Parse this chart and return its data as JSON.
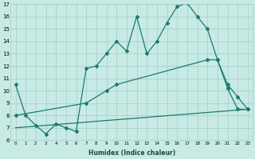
{
  "xlabel": "Humidex (Indice chaleur)",
  "xlim": [
    -0.5,
    23.5
  ],
  "ylim": [
    6,
    17
  ],
  "yticks": [
    6,
    7,
    8,
    9,
    10,
    11,
    12,
    13,
    14,
    15,
    16,
    17
  ],
  "xticks": [
    0,
    1,
    2,
    3,
    4,
    5,
    6,
    7,
    8,
    9,
    10,
    11,
    12,
    13,
    14,
    15,
    16,
    17,
    18,
    19,
    20,
    21,
    22,
    23
  ],
  "bg_color": "#c8eae4",
  "grid_color": "#a0cdc6",
  "line_color": "#1a7a6e",
  "line1_x": [
    0,
    1,
    2,
    3,
    4,
    5,
    6,
    7,
    8,
    9,
    10,
    11,
    12,
    13,
    14,
    15,
    16,
    17,
    18,
    19,
    20,
    21,
    22,
    23
  ],
  "line1_y": [
    10.5,
    8.0,
    7.2,
    6.5,
    7.3,
    7.0,
    6.7,
    11.8,
    12.0,
    13.0,
    14.0,
    13.2,
    16.0,
    13.0,
    14.0,
    15.5,
    16.8,
    17.1,
    16.0,
    15.0,
    12.5,
    10.5,
    9.5,
    8.5
  ],
  "line2_x": [
    0,
    7,
    9,
    10,
    19,
    20,
    21,
    22,
    23
  ],
  "line2_y": [
    8.0,
    9.0,
    10.0,
    10.5,
    12.5,
    12.5,
    10.2,
    8.5,
    8.5
  ],
  "line3_x": [
    0,
    23
  ],
  "line3_y": [
    7.0,
    8.5
  ],
  "marker": "D",
  "markersize": 2.0,
  "linewidth": 0.9
}
